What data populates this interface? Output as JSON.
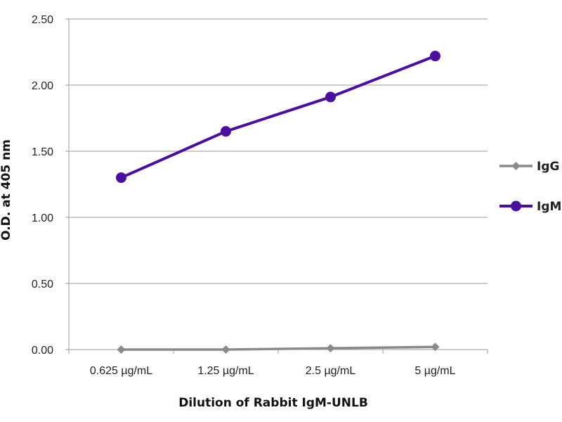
{
  "chart_data": {
    "type": "line",
    "title": "",
    "xlabel": "Dilution of Rabbit IgM-UNLB",
    "ylabel": "O.D. at 405 nm",
    "categories": [
      "0.625 µg/mL",
      "1.25 µg/mL",
      "2.5 µg/mL",
      "5 µg/mL"
    ],
    "ylim": [
      0,
      2.5
    ],
    "yticks": [
      "0.00",
      "0.50",
      "1.00",
      "1.50",
      "2.00",
      "2.50"
    ],
    "ytick_values": [
      0,
      0.5,
      1.0,
      1.5,
      2.0,
      2.5
    ],
    "grid": "horizontal",
    "legend_position": "right",
    "series": [
      {
        "name": "IgG",
        "values": [
          0.0,
          0.0,
          0.01,
          0.02
        ],
        "color": "#8a8a8a",
        "marker": "diamond"
      },
      {
        "name": "IgM",
        "values": [
          1.3,
          1.65,
          1.91,
          2.22
        ],
        "color": "#4b0fa0",
        "marker": "circle"
      }
    ]
  }
}
